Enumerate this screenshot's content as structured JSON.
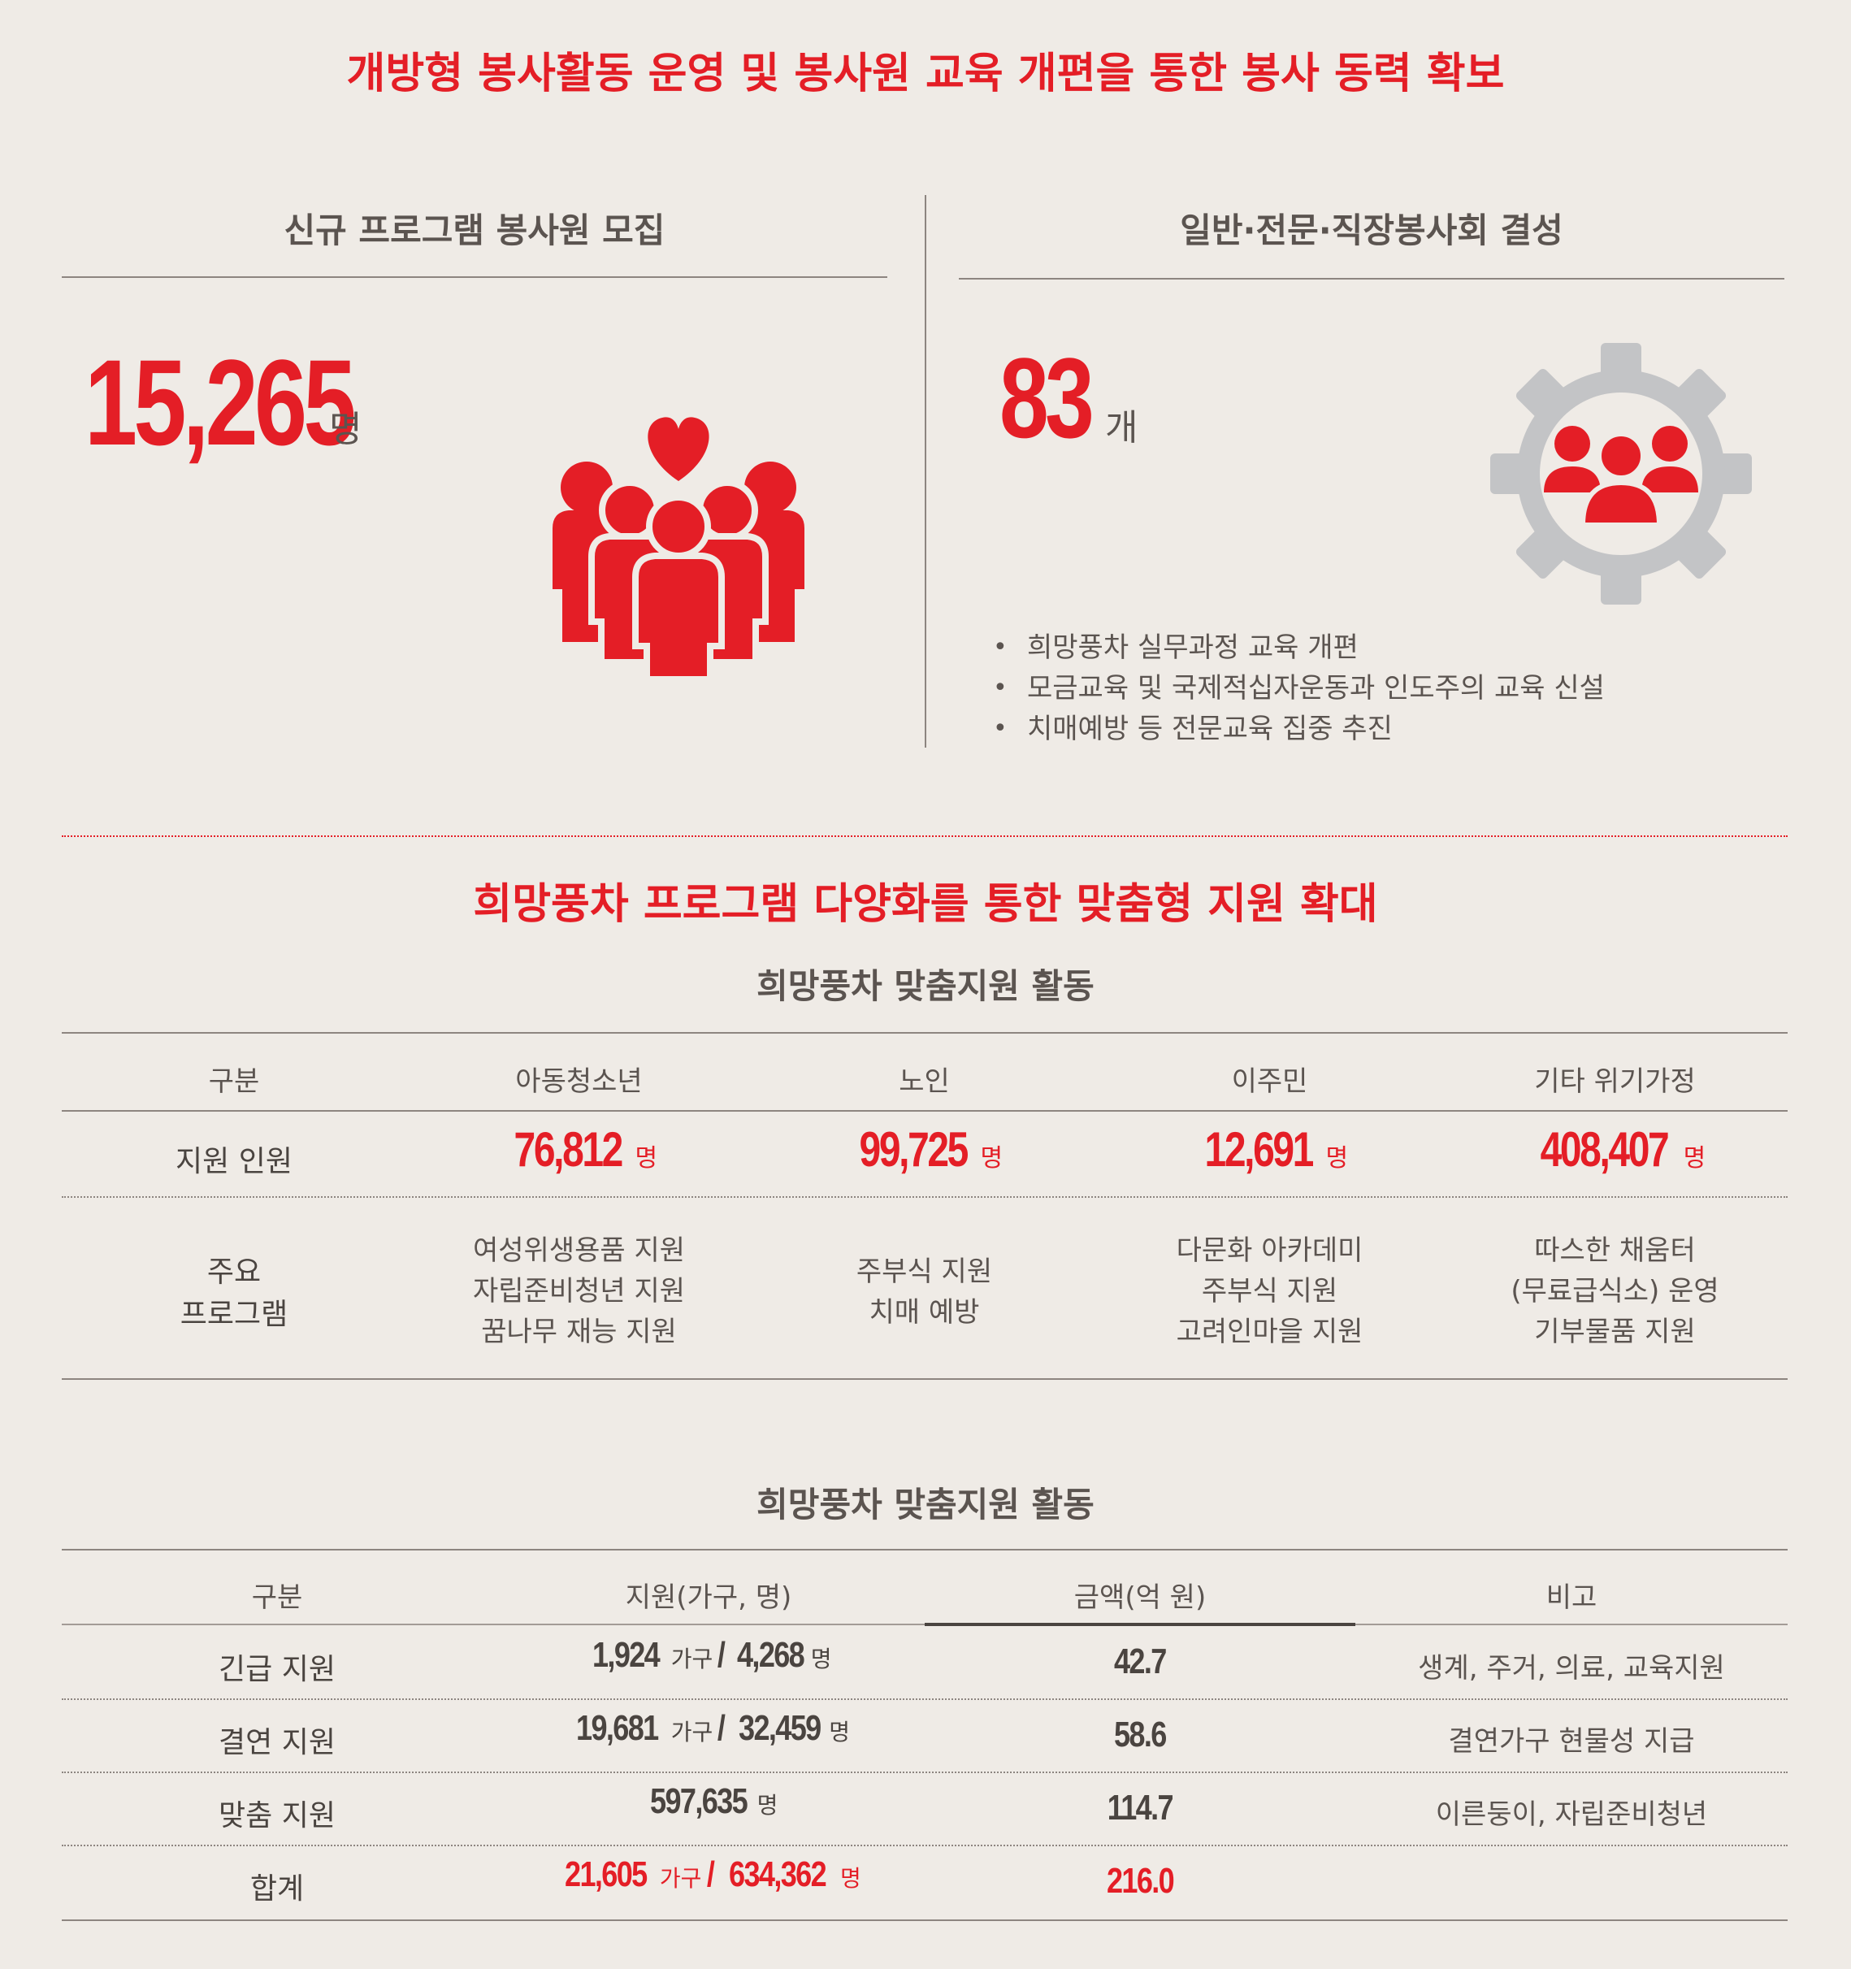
{
  "title1": "개방형 봉사활동 운영 및 봉사원 교육 개편을 통한 봉사 동력 확보",
  "left": {
    "heading": "신규 프로그램 봉사원 모집",
    "value": "15,265",
    "unit": "명"
  },
  "right": {
    "heading": "일반·전문·직장봉사회 결성",
    "value": "83",
    "unit": "개",
    "bullets": [
      "희망풍차 실무과정 교육 개편",
      "모금교육 및 국제적십자운동과 인도주의 교육 신설",
      "치매예방 등 전문교육 집중 추진"
    ]
  },
  "title2": "희망풍차 프로그램 다양화를 통한 맞춤형 지원 확대",
  "table1": {
    "caption": "희망풍차 맞춤지원 활동",
    "headers": [
      "구분",
      "아동청소년",
      "노인",
      "이주민",
      "기타 위기가정"
    ],
    "row1_label": "지원 인원",
    "row1": [
      {
        "value": "76,812",
        "unit": "명"
      },
      {
        "value": "99,725",
        "unit": "명"
      },
      {
        "value": "12,691",
        "unit": "명"
      },
      {
        "value": "408,407",
        "unit": "명"
      }
    ],
    "row2_label": [
      "주요",
      "프로그램"
    ],
    "row2": [
      [
        "여성위생용품 지원",
        "자립준비청년 지원",
        "꿈나무 재능 지원"
      ],
      [
        "주부식 지원",
        "치매 예방"
      ],
      [
        "다문화 아카데미",
        "주부식 지원",
        "고려인마을 지원"
      ],
      [
        "따스한 채움터",
        "(무료급식소) 운영",
        "기부물품 지원"
      ]
    ]
  },
  "table2": {
    "caption": "희망풍차 맞춤지원 활동",
    "headers": [
      "구분",
      "지원(가구, 명)",
      "금액(억 원)",
      "비고"
    ],
    "rows": [
      {
        "label": "긴급 지원",
        "households": "1,924",
        "hh_unit": "가구",
        "sep": "/",
        "people": "4,268",
        "p_unit": "명",
        "amount": "42.7",
        "note": "생계, 주거, 의료, 교육지원"
      },
      {
        "label": "결연 지원",
        "households": "19,681",
        "hh_unit": "가구",
        "sep": "/",
        "people": "32,459",
        "p_unit": "명",
        "amount": "58.6",
        "note": "결연가구 현물성 지급"
      },
      {
        "label": "맞춤 지원",
        "people": "597,635",
        "p_unit": "명",
        "amount": "114.7",
        "note": "이른둥이, 자립준비청년"
      }
    ],
    "total": {
      "label": "합계",
      "households": "21,605",
      "hh_unit": "가구",
      "sep": "/",
      "people": "634,362",
      "p_unit": "명",
      "amount": "216.0"
    }
  },
  "colors": {
    "accent": "#e41e26",
    "background": "#efebe6",
    "gear": "#c3c4c6",
    "text": "#4a4440"
  }
}
